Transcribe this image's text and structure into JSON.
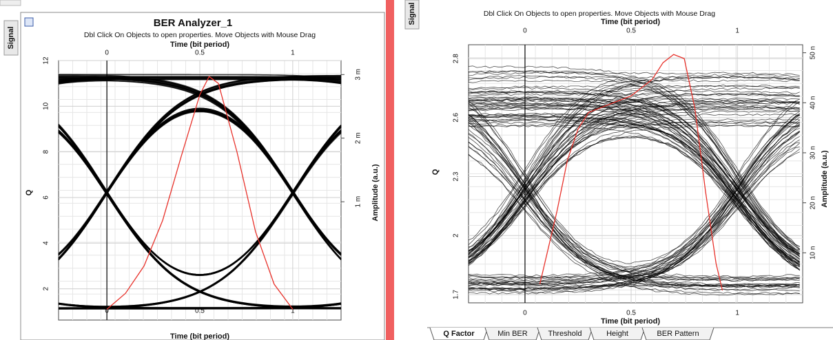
{
  "left": {
    "tab": "Signal",
    "title": "BER Analyzer_1",
    "hint": "Dbl Click On Objects to open properties.  Move Objects with Mouse Drag",
    "x_label": "Time (bit period)",
    "y_label": "Q",
    "y2_label": "Amplitude (a.u.)",
    "xlim": [
      -0.26,
      1.26
    ],
    "xticks": [
      0,
      0.5,
      1
    ],
    "ylim": [
      0.63,
      12
    ],
    "yticks": [
      2,
      4,
      6,
      8,
      10,
      12
    ],
    "y2lim": [
      -0.00086,
      0.00322
    ],
    "y2ticks": [
      {
        "value": 0.001,
        "label": "1 m"
      },
      {
        "value": 0.002,
        "label": "2 m"
      },
      {
        "value": 0.003,
        "label": "3 m"
      }
    ],
    "q_curve": {
      "color": "#e8312a",
      "x": [
        0,
        0.1,
        0.2,
        0.3,
        0.4,
        0.5,
        0.55,
        0.6,
        0.7,
        0.8,
        0.9,
        1.0
      ],
      "values": [
        1.1,
        1.8,
        3.0,
        5.0,
        7.8,
        10.5,
        11.3,
        11.0,
        8.0,
        4.5,
        2.2,
        1.1
      ]
    }
  },
  "right": {
    "tab": "Signal",
    "hint": "Dbl Click On Objects to open properties.  Move Objects with Mouse Drag",
    "x_label": "Time (bit period)",
    "y_label": "Q",
    "y2_label": "Amplitude (a.u.)",
    "xlim": [
      -0.266,
      1.308
    ],
    "xticks": [
      0,
      0.5,
      1
    ],
    "ylim": [
      1.66,
      2.907
    ],
    "yticks": [
      1.7,
      {
        "value": 1.985,
        "label": "2"
      },
      {
        "value": 2.27,
        "label": "2.3"
      },
      {
        "value": 2.555,
        "label": "2.6"
      },
      {
        "value": 2.84,
        "label": "2.8"
      }
    ],
    "y2lim": [
      0,
      5.16e-08
    ],
    "y2ticks": [
      {
        "value": 1e-08,
        "label": "10 n"
      },
      {
        "value": 2e-08,
        "label": "20 n"
      },
      {
        "value": 3e-08,
        "label": "30 n"
      },
      {
        "value": 4e-08,
        "label": "40 n"
      },
      {
        "value": 5e-08,
        "label": "50 n"
      }
    ],
    "q_curve": {
      "color": "#e8312a",
      "x": [
        0.07,
        0.15,
        0.2,
        0.25,
        0.3,
        0.4,
        0.5,
        0.6,
        0.65,
        0.7,
        0.75,
        0.8,
        0.85,
        0.9,
        0.93
      ],
      "values": [
        1.75,
        2.1,
        2.35,
        2.5,
        2.58,
        2.62,
        2.66,
        2.74,
        2.82,
        2.86,
        2.84,
        2.6,
        2.2,
        1.85,
        1.72
      ]
    },
    "tabs": [
      "Q Factor",
      "Min BER",
      "Threshold",
      "Height",
      "BER Pattern"
    ]
  }
}
